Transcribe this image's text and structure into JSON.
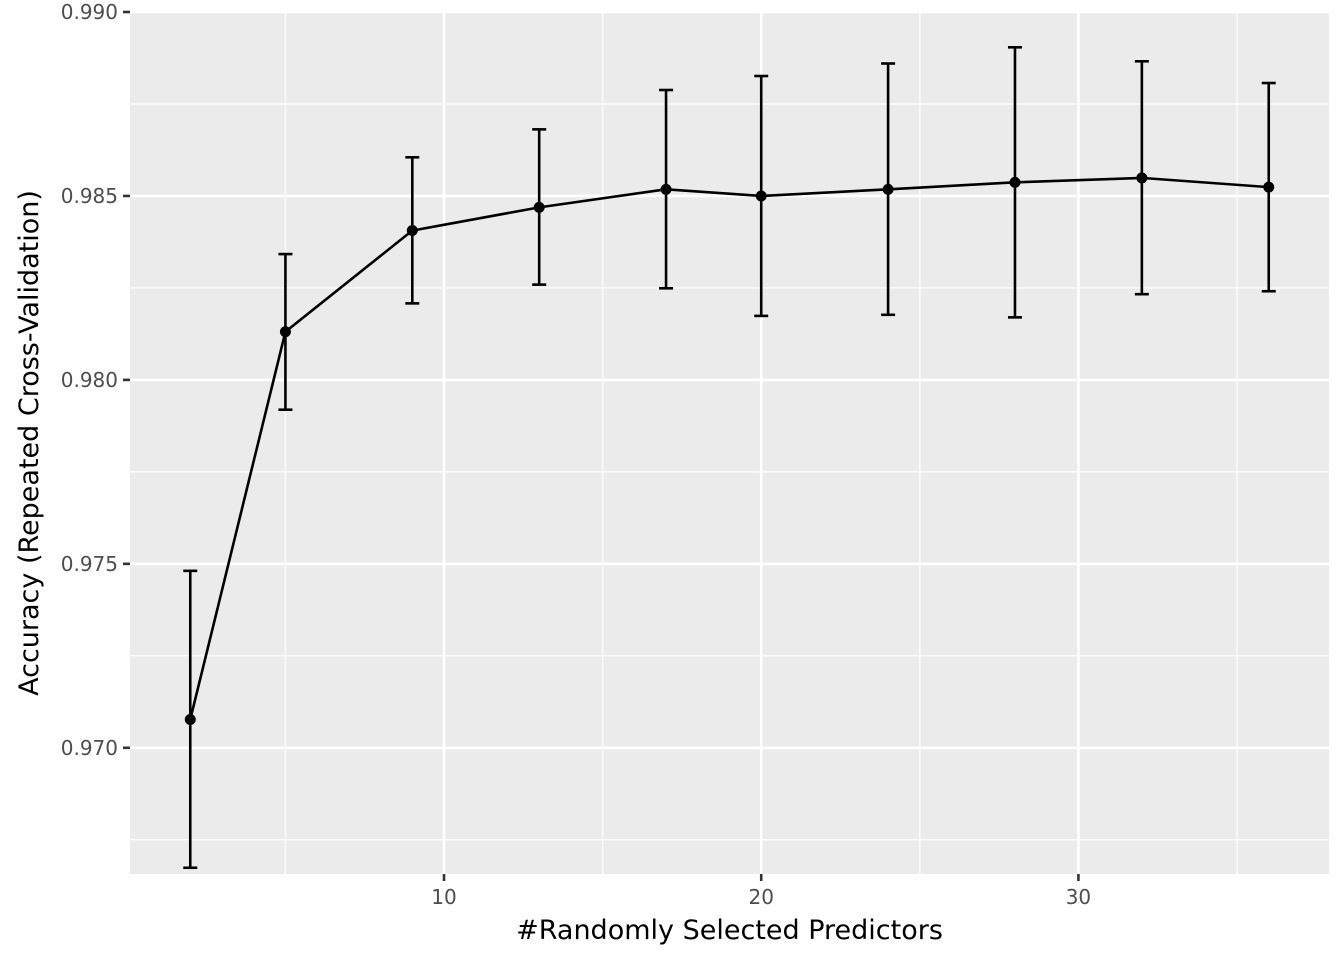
{
  "chart_data": {
    "type": "line",
    "title": "",
    "xlabel": "#Randomly Selected Predictors",
    "ylabel": "Accuracy (Repeated Cross-Validation)",
    "xlim": [
      0.1,
      37.9
    ],
    "ylim": [
      0.96657,
      0.99
    ],
    "x_ticks": [
      10,
      20,
      30
    ],
    "x_tick_labels": [
      "10",
      "20",
      "30"
    ],
    "x_minor_ticks": [
      5,
      15,
      25,
      35
    ],
    "y_ticks": [
      0.97,
      0.975,
      0.98,
      0.985,
      0.99
    ],
    "y_tick_labels": [
      "0.970",
      "0.975",
      "0.980",
      "0.985",
      "0.990"
    ],
    "y_minor_ticks": [
      0.9675,
      0.9725,
      0.9775,
      0.9825,
      0.9875
    ],
    "grid": true,
    "panel_color": "#ebebeb",
    "grid_color": "#ffffff",
    "series_color": "#000000",
    "series": [
      {
        "x": [
          2,
          5,
          9,
          13,
          17,
          20,
          24,
          28,
          32,
          36
        ],
        "values": [
          0.97077,
          0.98131,
          0.98406,
          0.98469,
          0.98518,
          0.985,
          0.98518,
          0.98537,
          0.98549,
          0.98524
        ],
        "error_lower": [
          0.96674,
          0.97919,
          0.98208,
          0.98259,
          0.98249,
          0.98174,
          0.98177,
          0.9817,
          0.98233,
          0.98241
        ],
        "error_upper": [
          0.97481,
          0.98342,
          0.98605,
          0.98681,
          0.98788,
          0.98826,
          0.9886,
          0.98904,
          0.98866,
          0.98807
        ]
      }
    ]
  }
}
